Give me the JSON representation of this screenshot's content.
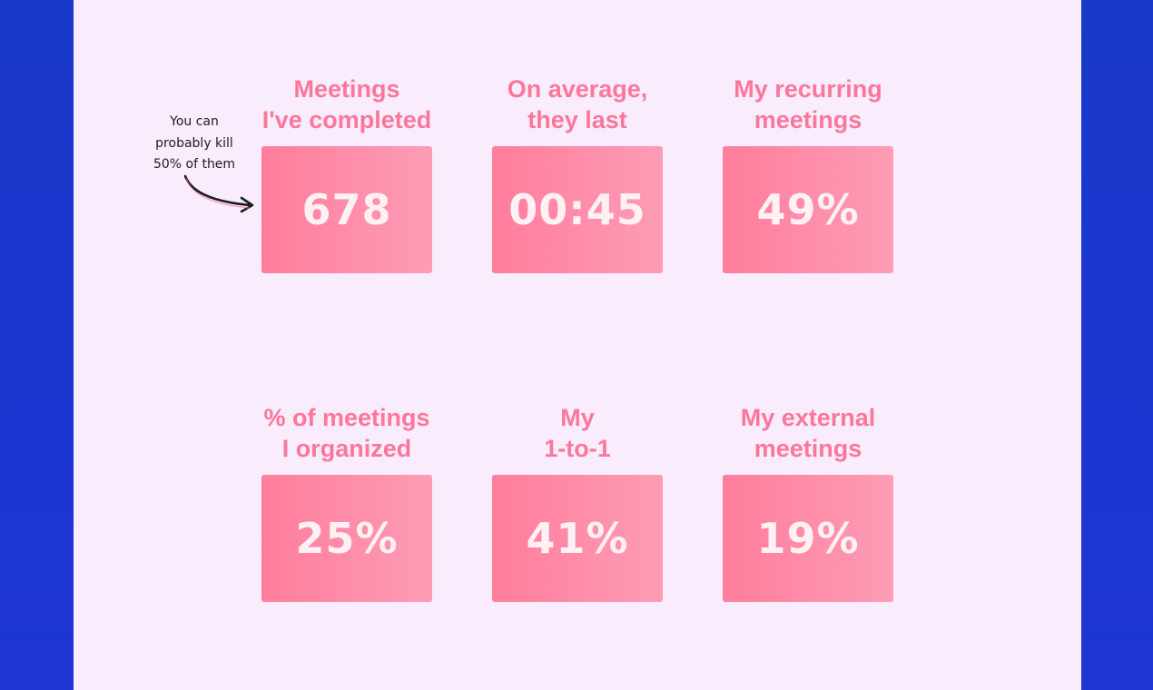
{
  "annotation": {
    "lines": [
      "You can",
      "probably kill",
      "50% of them"
    ]
  },
  "stats": [
    {
      "title_line1": "Meetings",
      "title_line2": "I've completed",
      "value": "678"
    },
    {
      "title_line1": "On average,",
      "title_line2": "they last",
      "value": "00:45"
    },
    {
      "title_line1": "My recurring",
      "title_line2": "meetings",
      "value": "49%"
    },
    {
      "title_line1": "% of meetings",
      "title_line2": "I organized",
      "value": "25%"
    },
    {
      "title_line1": "My",
      "title_line2": "1-to-1",
      "value": "41%"
    },
    {
      "title_line1": "My external",
      "title_line2": "meetings",
      "value": "19%"
    }
  ],
  "colors": {
    "background": "#1f35d6",
    "panel": "#f8ecfd",
    "title": "#fb7799",
    "card_start": "#fe7d9c",
    "card_end": "#fd9cb5",
    "value_text": "#fdf1f6"
  }
}
